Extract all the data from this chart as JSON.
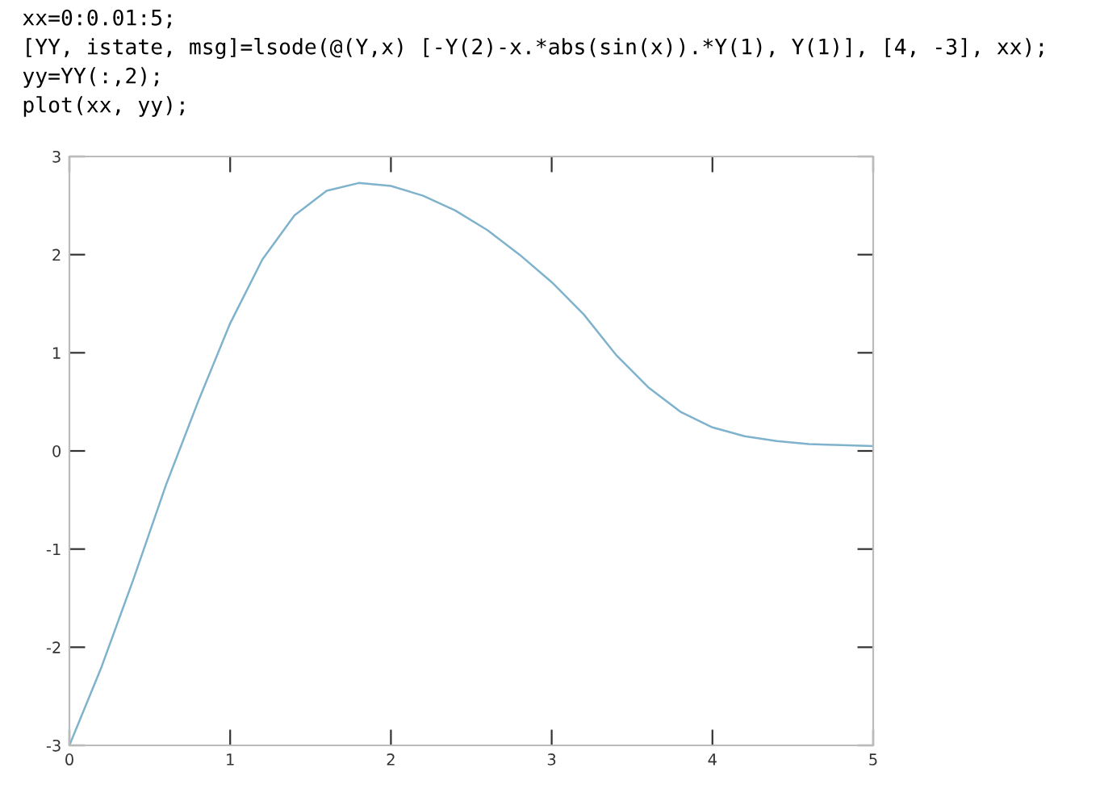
{
  "chart_data": {
    "type": "line",
    "annotations": [
      "xx=0:0.01:5;",
      "[YY, istate, msg]=lsode(@(Y,x) [-Y(2)-x.*abs(sin(x)).*Y(1), Y(1)], [4, -3], xx);",
      "yy=YY(:,2);",
      "plot(xx, yy);"
    ],
    "x": [
      0,
      0.2,
      0.4,
      0.6,
      0.8,
      1.0,
      1.2,
      1.4,
      1.6,
      1.8,
      2.0,
      2.2,
      2.4,
      2.6,
      2.8,
      3.0,
      3.2,
      3.4,
      3.6,
      3.8,
      4.0,
      4.2,
      4.4,
      4.6,
      4.8,
      5.0
    ],
    "series": [
      {
        "color": "#7fb2cc",
        "values": [
          -3,
          -2.2,
          -1.3,
          -0.35,
          0.5,
          1.3,
          1.95,
          2.4,
          2.65,
          2.73,
          2.7,
          2.6,
          2.45,
          2.25,
          2.0,
          1.72,
          1.39,
          0.98,
          0.65,
          0.4,
          0.24,
          0.15,
          0.1,
          0.07,
          0.06,
          0.05
        ]
      }
    ],
    "xlim": [
      0,
      5
    ],
    "ylim": [
      -3,
      3
    ],
    "xticks": [
      0,
      1,
      2,
      3,
      4,
      5
    ],
    "yticks": [
      -3,
      -2,
      -1,
      0,
      1,
      2,
      3
    ],
    "grid": false,
    "marker": "none",
    "line_style": "solid"
  }
}
